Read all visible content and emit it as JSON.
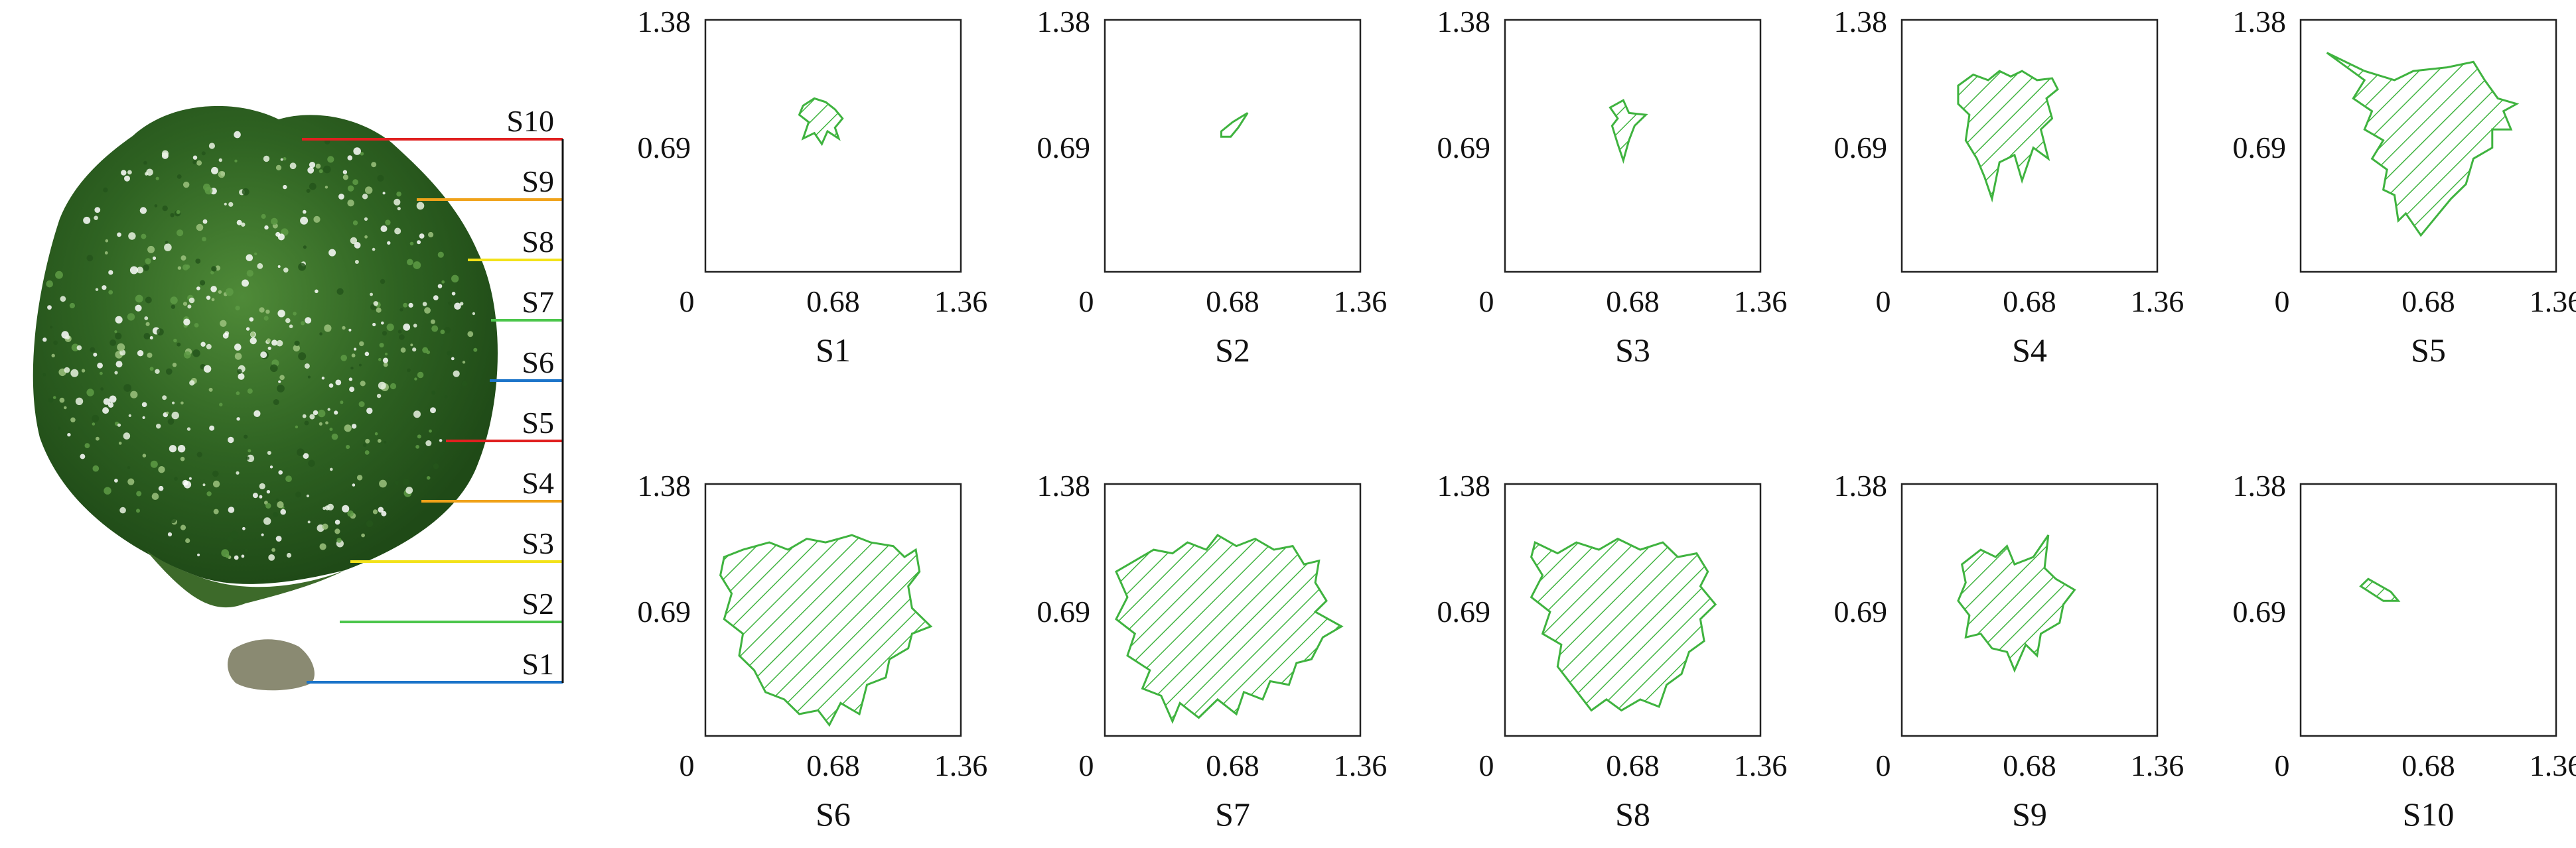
{
  "colors": {
    "red": "#e02020",
    "orange": "#f0a21a",
    "yellow": "#f3e21a",
    "green": "#4cc64c",
    "blue": "#1b74c9",
    "hatch": "#3fb33f",
    "frame": "#222222",
    "foliage_dark": "#1f4a17",
    "foliage_mid": "#3d7a2b",
    "foliage_light": "#6aa048"
  },
  "tree": {
    "levels": [
      {
        "label": "S10",
        "color": "red"
      },
      {
        "label": "S9",
        "color": "orange"
      },
      {
        "label": "S8",
        "color": "yellow"
      },
      {
        "label": "S7",
        "color": "green"
      },
      {
        "label": "S6",
        "color": "blue"
      },
      {
        "label": "S5",
        "color": "red"
      },
      {
        "label": "S4",
        "color": "orange"
      },
      {
        "label": "S3",
        "color": "yellow"
      },
      {
        "label": "S2",
        "color": "green"
      },
      {
        "label": "S1",
        "color": "blue"
      }
    ]
  },
  "axes": {
    "x_ticks": [
      "0",
      "0.68",
      "1.36"
    ],
    "y_ticks": [
      "0.69",
      "1.38"
    ],
    "xlim": [
      0,
      1.36
    ],
    "ylim": [
      0,
      1.38
    ]
  },
  "slices": [
    {
      "label": "S1",
      "outline": [
        [
          0.52,
          0.91
        ],
        [
          0.58,
          0.95
        ],
        [
          0.64,
          0.93
        ],
        [
          0.69,
          0.89
        ],
        [
          0.73,
          0.84
        ],
        [
          0.69,
          0.79
        ],
        [
          0.71,
          0.73
        ],
        [
          0.65,
          0.77
        ],
        [
          0.62,
          0.7
        ],
        [
          0.58,
          0.76
        ],
        [
          0.52,
          0.73
        ],
        [
          0.55,
          0.82
        ],
        [
          0.5,
          0.86
        ]
      ]
    },
    {
      "label": "S2",
      "outline": [
        [
          0.62,
          0.77
        ],
        [
          0.68,
          0.82
        ],
        [
          0.76,
          0.87
        ],
        [
          0.71,
          0.79
        ],
        [
          0.67,
          0.74
        ],
        [
          0.62,
          0.74
        ]
      ]
    },
    {
      "label": "S3",
      "outline": [
        [
          0.56,
          0.9
        ],
        [
          0.63,
          0.94
        ],
        [
          0.66,
          0.87
        ],
        [
          0.75,
          0.86
        ],
        [
          0.69,
          0.8
        ],
        [
          0.66,
          0.72
        ],
        [
          0.63,
          0.61
        ],
        [
          0.6,
          0.7
        ],
        [
          0.57,
          0.8
        ],
        [
          0.6,
          0.84
        ]
      ]
    },
    {
      "label": "S4",
      "outline": [
        [
          0.3,
          1.02
        ],
        [
          0.38,
          1.08
        ],
        [
          0.46,
          1.05
        ],
        [
          0.52,
          1.1
        ],
        [
          0.58,
          1.07
        ],
        [
          0.64,
          1.1
        ],
        [
          0.72,
          1.05
        ],
        [
          0.8,
          1.06
        ],
        [
          0.83,
          1.0
        ],
        [
          0.77,
          0.95
        ],
        [
          0.8,
          0.84
        ],
        [
          0.74,
          0.78
        ],
        [
          0.78,
          0.62
        ],
        [
          0.7,
          0.68
        ],
        [
          0.64,
          0.5
        ],
        [
          0.6,
          0.64
        ],
        [
          0.52,
          0.6
        ],
        [
          0.48,
          0.4
        ],
        [
          0.44,
          0.52
        ],
        [
          0.4,
          0.62
        ],
        [
          0.34,
          0.72
        ],
        [
          0.36,
          0.86
        ],
        [
          0.3,
          0.92
        ]
      ]
    },
    {
      "label": "S5",
      "outline": [
        [
          0.14,
          1.2
        ],
        [
          0.34,
          1.1
        ],
        [
          0.5,
          1.05
        ],
        [
          0.6,
          1.1
        ],
        [
          0.78,
          1.12
        ],
        [
          0.92,
          1.15
        ],
        [
          0.98,
          1.05
        ],
        [
          1.05,
          0.95
        ],
        [
          1.15,
          0.92
        ],
        [
          1.08,
          0.88
        ],
        [
          1.12,
          0.78
        ],
        [
          1.02,
          0.78
        ],
        [
          1.02,
          0.68
        ],
        [
          0.92,
          0.62
        ],
        [
          0.88,
          0.48
        ],
        [
          0.8,
          0.4
        ],
        [
          0.72,
          0.3
        ],
        [
          0.64,
          0.2
        ],
        [
          0.56,
          0.32
        ],
        [
          0.52,
          0.28
        ],
        [
          0.5,
          0.42
        ],
        [
          0.44,
          0.45
        ],
        [
          0.46,
          0.56
        ],
        [
          0.38,
          0.62
        ],
        [
          0.44,
          0.72
        ],
        [
          0.34,
          0.78
        ],
        [
          0.38,
          0.88
        ],
        [
          0.28,
          0.95
        ],
        [
          0.34,
          1.05
        ]
      ]
    },
    {
      "label": "S6",
      "outline": [
        [
          0.1,
          0.98
        ],
        [
          0.2,
          1.02
        ],
        [
          0.34,
          1.06
        ],
        [
          0.44,
          1.02
        ],
        [
          0.54,
          1.08
        ],
        [
          0.64,
          1.06
        ],
        [
          0.78,
          1.1
        ],
        [
          0.88,
          1.06
        ],
        [
          1.0,
          1.04
        ],
        [
          1.06,
          0.98
        ],
        [
          1.12,
          1.02
        ],
        [
          1.14,
          0.9
        ],
        [
          1.08,
          0.82
        ],
        [
          1.1,
          0.7
        ],
        [
          1.2,
          0.6
        ],
        [
          1.1,
          0.56
        ],
        [
          1.08,
          0.48
        ],
        [
          0.98,
          0.42
        ],
        [
          0.96,
          0.32
        ],
        [
          0.86,
          0.28
        ],
        [
          0.82,
          0.12
        ],
        [
          0.72,
          0.18
        ],
        [
          0.66,
          0.06
        ],
        [
          0.6,
          0.14
        ],
        [
          0.5,
          0.12
        ],
        [
          0.42,
          0.2
        ],
        [
          0.32,
          0.24
        ],
        [
          0.26,
          0.36
        ],
        [
          0.18,
          0.44
        ],
        [
          0.2,
          0.56
        ],
        [
          0.1,
          0.64
        ],
        [
          0.14,
          0.78
        ],
        [
          0.08,
          0.88
        ]
      ]
    },
    {
      "label": "S7",
      "outline": [
        [
          0.06,
          0.9
        ],
        [
          0.16,
          0.96
        ],
        [
          0.26,
          1.02
        ],
        [
          0.36,
          1.0
        ],
        [
          0.44,
          1.06
        ],
        [
          0.54,
          1.02
        ],
        [
          0.6,
          1.1
        ],
        [
          0.7,
          1.04
        ],
        [
          0.8,
          1.08
        ],
        [
          0.9,
          1.02
        ],
        [
          1.0,
          1.04
        ],
        [
          1.06,
          0.94
        ],
        [
          1.14,
          0.96
        ],
        [
          1.12,
          0.84
        ],
        [
          1.18,
          0.74
        ],
        [
          1.12,
          0.68
        ],
        [
          1.26,
          0.6
        ],
        [
          1.16,
          0.54
        ],
        [
          1.1,
          0.42
        ],
        [
          1.02,
          0.4
        ],
        [
          0.98,
          0.28
        ],
        [
          0.88,
          0.3
        ],
        [
          0.84,
          0.2
        ],
        [
          0.74,
          0.24
        ],
        [
          0.7,
          0.12
        ],
        [
          0.6,
          0.2
        ],
        [
          0.5,
          0.1
        ],
        [
          0.4,
          0.18
        ],
        [
          0.36,
          0.08
        ],
        [
          0.3,
          0.22
        ],
        [
          0.2,
          0.26
        ],
        [
          0.24,
          0.36
        ],
        [
          0.12,
          0.44
        ],
        [
          0.16,
          0.56
        ],
        [
          0.06,
          0.64
        ],
        [
          0.12,
          0.76
        ]
      ]
    },
    {
      "label": "S8",
      "outline": [
        [
          0.16,
          1.06
        ],
        [
          0.28,
          1.0
        ],
        [
          0.38,
          1.06
        ],
        [
          0.5,
          1.02
        ],
        [
          0.6,
          1.08
        ],
        [
          0.72,
          1.02
        ],
        [
          0.84,
          1.06
        ],
        [
          0.92,
          0.98
        ],
        [
          1.02,
          1.0
        ],
        [
          1.08,
          0.9
        ],
        [
          1.04,
          0.82
        ],
        [
          1.12,
          0.72
        ],
        [
          1.04,
          0.64
        ],
        [
          1.06,
          0.52
        ],
        [
          0.98,
          0.46
        ],
        [
          0.94,
          0.34
        ],
        [
          0.86,
          0.28
        ],
        [
          0.82,
          0.16
        ],
        [
          0.72,
          0.2
        ],
        [
          0.62,
          0.14
        ],
        [
          0.54,
          0.2
        ],
        [
          0.46,
          0.14
        ],
        [
          0.4,
          0.22
        ],
        [
          0.34,
          0.3
        ],
        [
          0.28,
          0.38
        ],
        [
          0.3,
          0.5
        ],
        [
          0.2,
          0.56
        ],
        [
          0.24,
          0.68
        ],
        [
          0.14,
          0.76
        ],
        [
          0.2,
          0.88
        ],
        [
          0.14,
          0.98
        ]
      ]
    },
    {
      "label": "S9",
      "outline": [
        [
          0.32,
          0.94
        ],
        [
          0.42,
          1.02
        ],
        [
          0.5,
          0.98
        ],
        [
          0.56,
          1.04
        ],
        [
          0.6,
          0.94
        ],
        [
          0.7,
          0.98
        ],
        [
          0.78,
          1.1
        ],
        [
          0.76,
          0.92
        ],
        [
          0.82,
          0.86
        ],
        [
          0.92,
          0.8
        ],
        [
          0.86,
          0.72
        ],
        [
          0.84,
          0.62
        ],
        [
          0.74,
          0.56
        ],
        [
          0.72,
          0.44
        ],
        [
          0.66,
          0.5
        ],
        [
          0.6,
          0.36
        ],
        [
          0.56,
          0.46
        ],
        [
          0.48,
          0.48
        ],
        [
          0.42,
          0.56
        ],
        [
          0.34,
          0.54
        ],
        [
          0.36,
          0.66
        ],
        [
          0.3,
          0.74
        ],
        [
          0.34,
          0.84
        ]
      ]
    },
    {
      "label": "S10",
      "outline": [
        [
          0.36,
          0.86
        ],
        [
          0.48,
          0.79
        ],
        [
          0.52,
          0.74
        ],
        [
          0.44,
          0.74
        ],
        [
          0.32,
          0.82
        ]
      ]
    }
  ]
}
